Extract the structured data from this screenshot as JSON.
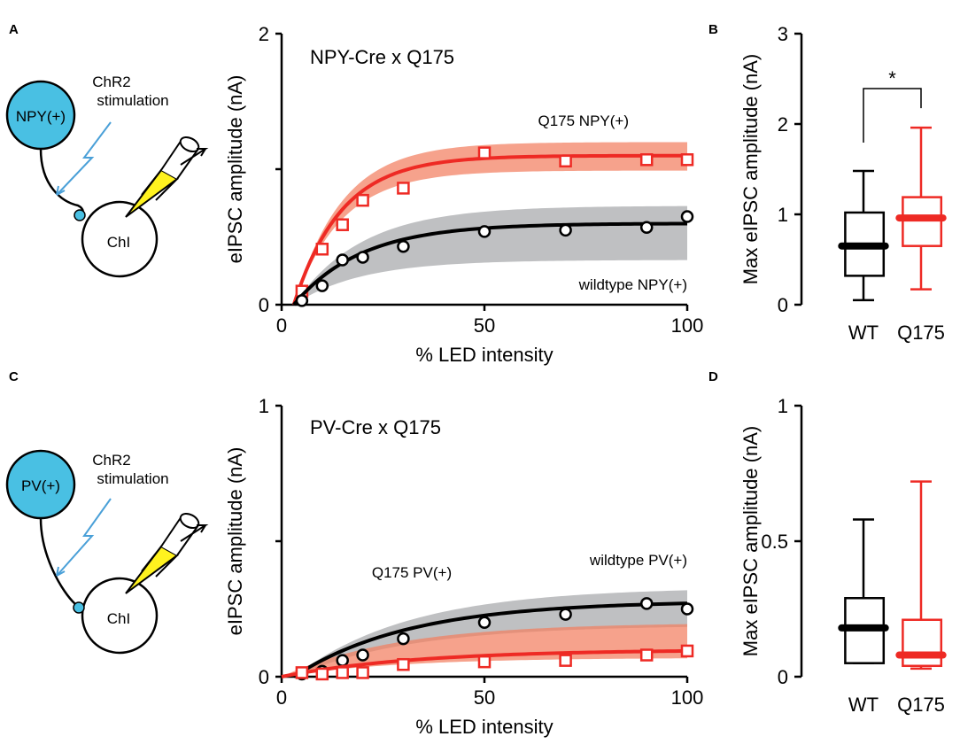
{
  "colors": {
    "red": "#ee2a24",
    "black": "#000000",
    "gray_band": "#a6a8ab",
    "orange_band": "#f37e5f",
    "cyan": "#49c0e3",
    "yellow": "#fff21f",
    "blue_line": "#4aa0d8"
  },
  "panels": {
    "A": {
      "letter": "A",
      "cell_label": "NPY(+)",
      "target_label": "ChI",
      "stim_label_1": "ChR2",
      "stim_label_2": "stimulation"
    },
    "B": {
      "letter": "B"
    },
    "C": {
      "letter": "C",
      "cell_label": "PV(+)",
      "target_label": "ChI",
      "stim_label_1": "ChR2",
      "stim_label_2": "stimulation"
    },
    "D": {
      "letter": "D"
    }
  },
  "chart_data": [
    {
      "id": "A",
      "type": "line",
      "title": "NPY-Cre x Q175",
      "xlabel": "% LED intensity",
      "ylabel": "eIPSC amplitude (nA)",
      "xlim": [
        0,
        100
      ],
      "ylim": [
        0,
        2
      ],
      "xticks": [
        "0",
        "50",
        "100"
      ],
      "xtick_values": [
        0,
        50,
        100
      ],
      "yticks": [
        "0",
        "",
        "2"
      ],
      "ytick_values": [
        0,
        1,
        2
      ],
      "series": [
        {
          "name": "Q175 NPY(+)",
          "color": "red",
          "marker": "square",
          "x": [
            5,
            10,
            15,
            20,
            30,
            50,
            70,
            90,
            100
          ],
          "y": [
            0.1,
            0.41,
            0.59,
            0.77,
            0.86,
            1.12,
            1.06,
            1.07,
            1.07
          ],
          "fit": {
            "x0": 3.0,
            "max": 1.1,
            "k": 0.085
          },
          "band": {
            "upper": 1.2,
            "lower": 0.99,
            "k": 0.085
          },
          "label_pos": "upper-right"
        },
        {
          "name": "wildtype NPY(+)",
          "color": "black",
          "marker": "circle",
          "x": [
            5,
            10,
            15,
            20,
            30,
            50,
            70,
            90,
            100
          ],
          "y": [
            0.03,
            0.14,
            0.33,
            0.35,
            0.43,
            0.54,
            0.55,
            0.57,
            0.65
          ],
          "fit": {
            "x0": 3.0,
            "max": 0.6,
            "k": 0.06
          },
          "band": {
            "upper": 0.73,
            "lower": 0.33,
            "k": 0.06
          },
          "label_pos": "lower-right"
        }
      ]
    },
    {
      "id": "B",
      "type": "box",
      "ylabel": "Max eIPSC amplitude (nA)",
      "ylim": [
        0,
        3
      ],
      "yticks": [
        "0",
        "1",
        "2",
        "3"
      ],
      "ytick_values": [
        0,
        1,
        2,
        3
      ],
      "categories": [
        "WT",
        "Q175"
      ],
      "category_colors": [
        "black",
        "red"
      ],
      "boxes": [
        {
          "min": 0.05,
          "q1": 0.32,
          "median": 0.65,
          "q3": 1.02,
          "max": 1.48
        },
        {
          "min": 0.17,
          "q1": 0.65,
          "median": 0.96,
          "q3": 1.19,
          "max": 1.96
        }
      ],
      "significance": "*"
    },
    {
      "id": "C",
      "type": "line",
      "title": "PV-Cre x Q175",
      "xlabel": "% LED intensity",
      "ylabel": "eIPSC amplitude (nA)",
      "xlim": [
        0,
        100
      ],
      "ylim": [
        0,
        1
      ],
      "xticks": [
        "0",
        "50",
        "100"
      ],
      "xtick_values": [
        0,
        50,
        100
      ],
      "yticks": [
        "0",
        "",
        "1"
      ],
      "ytick_values": [
        0,
        0.5,
        1
      ],
      "series": [
        {
          "name": "wildtype PV(+)",
          "color": "black",
          "marker": "circle",
          "x": [
            5,
            10,
            15,
            20,
            30,
            50,
            70,
            90,
            100
          ],
          "y": [
            0.01,
            0.02,
            0.06,
            0.08,
            0.14,
            0.2,
            0.23,
            0.27,
            0.25
          ],
          "fit": {
            "x0": 3.0,
            "max": 0.28,
            "k": 0.035
          },
          "band": {
            "upper": 0.33,
            "lower": 0.19,
            "k": 0.035
          },
          "label_pos": "upper-right"
        },
        {
          "name": "Q175 PV(+)",
          "color": "red",
          "marker": "square",
          "x": [
            5,
            10,
            15,
            20,
            30,
            50,
            70,
            90,
            100
          ],
          "y": [
            0.015,
            0.01,
            0.015,
            0.015,
            0.045,
            0.055,
            0.06,
            0.08,
            0.095
          ],
          "fit": {
            "x0": 0.0,
            "max": 0.1,
            "k": 0.03
          },
          "band": {
            "upper": 0.2,
            "lower": 0.07,
            "k": 0.035
          },
          "label_pos": "middle"
        }
      ]
    },
    {
      "id": "D",
      "type": "box",
      "ylabel": "Max eIPSC amplitude (nA)",
      "ylim": [
        0,
        1
      ],
      "yticks": [
        "0",
        "0.5",
        "1"
      ],
      "ytick_values": [
        0,
        0.5,
        1
      ],
      "categories": [
        "WT",
        "Q175"
      ],
      "category_colors": [
        "black",
        "red"
      ],
      "boxes": [
        {
          "min": 0.05,
          "q1": 0.05,
          "median": 0.18,
          "q3": 0.29,
          "max": 0.58
        },
        {
          "min": 0.03,
          "q1": 0.04,
          "median": 0.08,
          "q3": 0.21,
          "max": 0.72
        }
      ]
    }
  ]
}
